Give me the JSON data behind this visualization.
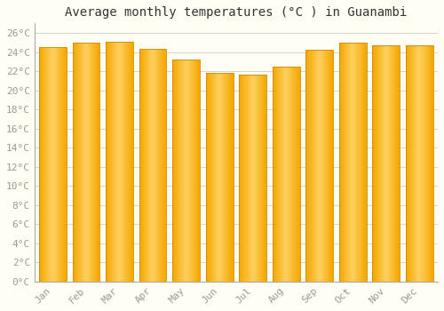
{
  "title": "Average monthly temperatures (°C ) in Guanambi",
  "months": [
    "Jan",
    "Feb",
    "Mar",
    "Apr",
    "May",
    "Jun",
    "Jul",
    "Aug",
    "Sep",
    "Oct",
    "Nov",
    "Dec"
  ],
  "values": [
    24.5,
    25.0,
    25.1,
    24.3,
    23.2,
    21.8,
    21.6,
    22.5,
    24.2,
    25.0,
    24.7,
    24.7
  ],
  "bar_color_left": "#F5A800",
  "bar_color_center": "#FFD060",
  "bar_color_right": "#F5A800",
  "bar_edge_color": "#D08800",
  "background_color": "#FFFEF5",
  "grid_color": "#CCCCCC",
  "ylim": [
    0,
    27
  ],
  "ytick_step": 2,
  "title_fontsize": 10,
  "tick_fontsize": 8,
  "font_family": "monospace",
  "tick_color": "#999999",
  "title_color": "#333333",
  "left_spine_color": "#AAAAAA"
}
